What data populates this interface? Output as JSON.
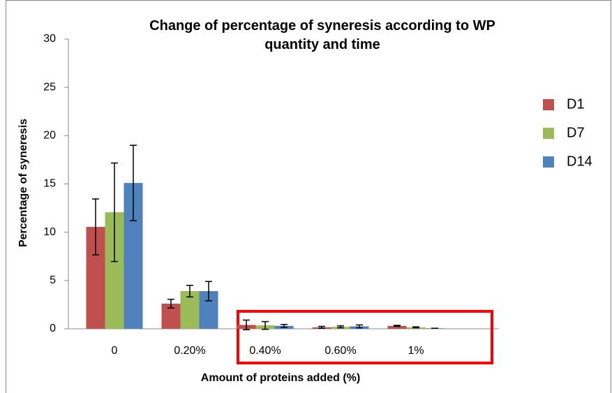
{
  "chart_data": {
    "type": "bar",
    "title": "Change of percentage of syneresis according to WP quantity and time",
    "xlabel": "Amount of proteins added (%)",
    "ylabel": "Percentage of syneresis",
    "categories": [
      "0",
      "0.20%",
      "0.40%",
      "0.60%",
      "1%"
    ],
    "series": [
      {
        "name": "D1",
        "color": "#c0504d",
        "values": [
          10.55,
          2.6,
          0.4,
          0.15,
          0.3
        ],
        "errors": [
          2.9,
          0.45,
          0.5,
          0.1,
          0.05
        ]
      },
      {
        "name": "D7",
        "color": "#9bbb59",
        "values": [
          12.07,
          3.9,
          0.35,
          0.2,
          0.15
        ],
        "errors": [
          5.1,
          0.6,
          0.4,
          0.1,
          0.05
        ]
      },
      {
        "name": "D14",
        "color": "#4f81bd",
        "values": [
          15.1,
          3.9,
          0.3,
          0.25,
          0.05
        ],
        "errors": [
          3.9,
          1.0,
          0.15,
          0.15,
          0
        ]
      }
    ],
    "ylim": [
      0,
      30
    ],
    "yticks": [
      0,
      5,
      10,
      15,
      20,
      25,
      30
    ],
    "grid": false,
    "legend": "right"
  }
}
